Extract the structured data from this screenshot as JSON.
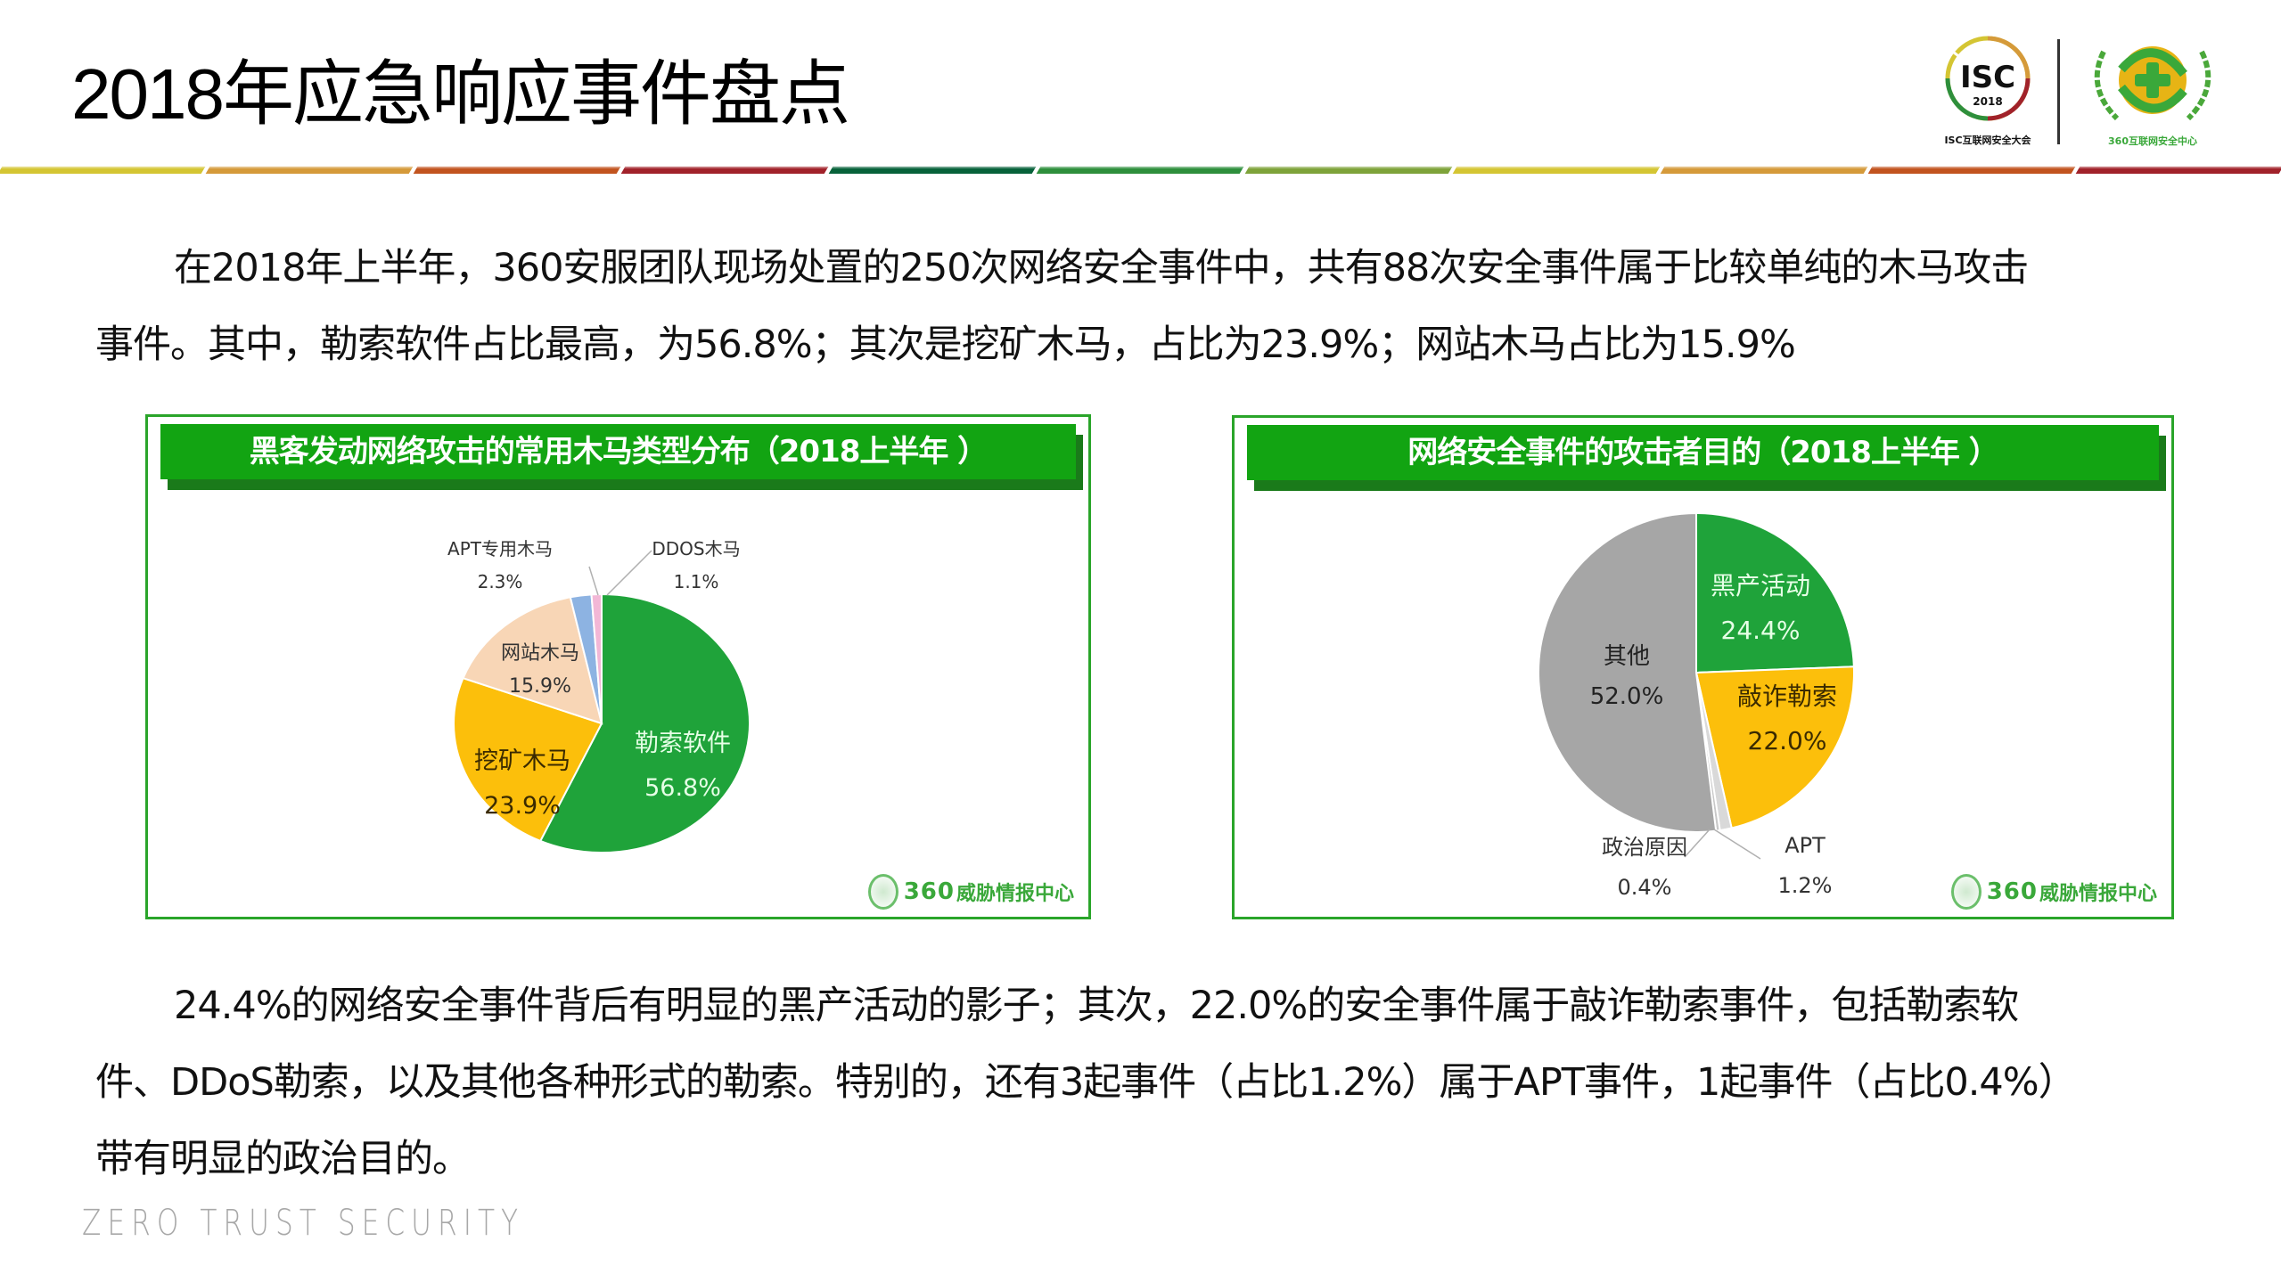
{
  "header": {
    "title": "2018年应急响应事件盘点",
    "divider_colors": [
      "#d4c533",
      "#d59a3a",
      "#c2541f",
      "#a1222a",
      "#07623a",
      "#2e8f3c",
      "#7ea33a",
      "#d4c533",
      "#d59a3a",
      "#c2541f",
      "#a1222a"
    ],
    "logos": {
      "isc": {
        "main": "ISC",
        "year": "2018",
        "caption": "ISC互联网安全大会"
      },
      "center": {
        "caption": "360互联网安全中心"
      }
    }
  },
  "intro": {
    "line1": "在2018年上半年，360安服团队现场处置的250次网络安全事件中，共有88次安全事件属于比较单纯的木马攻击",
    "line2": "事件。其中，勒索软件占比最高，为56.8%；其次是挖矿木马，占比为23.9%；网站木马占比为15.9%"
  },
  "summary": {
    "line1": "24.4%的网络安全事件背后有明显的黑产活动的影子；其次，22.0%的安全事件属于敲诈勒索事件，包括勒索软",
    "line2": "件、DDoS勒索，以及其他各种形式的勒索。特别的，还有3起事件（占比1.2%）属于APT事件，1起事件（占比0.4%）",
    "line3": "带有明显的政治目的。"
  },
  "footer": {
    "tagline": "ZERO TRUST SECURITY"
  },
  "panels": {
    "left": {
      "title": "黑客发动网络攻击的常用木马类型分布（2018上半年 ）",
      "watermark_num": "360",
      "watermark_text": "威胁情报中心"
    },
    "right": {
      "title": "网络安全事件的攻击者目的（2018上半年 ）",
      "watermark_num": "360",
      "watermark_text": "威胁情报中心"
    }
  },
  "chart_data": [
    {
      "type": "pie",
      "title": "黑客发动网络攻击的常用木马类型分布（2018上半年 ）",
      "categories": [
        "勒索软件",
        "挖矿木马",
        "网站木马",
        "APT专用木马",
        "DDOS木马"
      ],
      "values": [
        56.8,
        23.9,
        15.9,
        2.3,
        1.1
      ],
      "labels": [
        "56.8%",
        "23.9%",
        "15.9%",
        "2.3%",
        "1.1%"
      ],
      "colors": [
        "#1fa33a",
        "#fcbf0b",
        "#f8d6b6",
        "#8db3e2",
        "#f2b7d6"
      ],
      "start_angle": "top, clockwise",
      "legend": "none (data labels on/near slices)"
    },
    {
      "type": "pie",
      "title": "网络安全事件的攻击者目的（2018上半年 ）",
      "categories": [
        "黑产活动",
        "敲诈勒索",
        "APT",
        "政治原因",
        "其他"
      ],
      "values": [
        24.4,
        22.0,
        1.2,
        0.4,
        52.0
      ],
      "labels": [
        "24.4%",
        "22.0%",
        "1.2%",
        "0.4%",
        "52.0%"
      ],
      "colors": [
        "#1fa33a",
        "#fcbf0b",
        "#d9d9d9",
        "#c8c8c8",
        "#a6a6a6"
      ],
      "start_angle": "top, clockwise",
      "legend": "none (data labels on/near slices)"
    }
  ]
}
